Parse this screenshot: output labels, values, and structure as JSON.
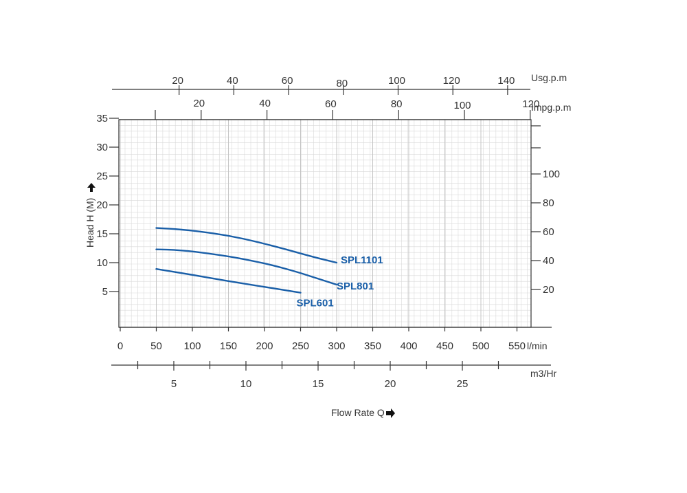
{
  "chart_data": {
    "type": "line",
    "colors": {
      "series": "#1a5fa8",
      "grid": "#d9d9d9",
      "axis": "#333333"
    },
    "grid": true,
    "x_axes": {
      "lpm": {
        "unit": "l/min",
        "range": [
          0,
          580
        ],
        "ticks": [
          0,
          50,
          100,
          150,
          200,
          250,
          300,
          350,
          400,
          450,
          500,
          550
        ]
      },
      "m3hr": {
        "unit": "m3/Hr",
        "ticks": [
          5,
          10,
          15,
          20,
          25
        ]
      },
      "usgpm": {
        "unit": "Usg.p.m",
        "ticks": [
          20,
          40,
          60,
          80,
          100,
          120,
          140
        ]
      },
      "impgpm": {
        "unit": "Impg.p.m",
        "ticks": [
          20,
          40,
          60,
          80,
          100,
          120
        ]
      }
    },
    "y_axes": {
      "head": {
        "label": "Head H (M)",
        "range": [
          0,
          35
        ],
        "ticks": [
          5,
          10,
          15,
          20,
          25,
          30,
          35
        ]
      },
      "right": {
        "range": [
          0,
          35
        ],
        "ticks": [
          20,
          40,
          60,
          80,
          100
        ]
      }
    },
    "x_title": "Flow Rate Q",
    "series": [
      {
        "name": "SPL1101",
        "x": [
          50,
          80,
          110,
          150,
          190,
          230,
          270,
          300
        ],
        "y": [
          16.0,
          15.8,
          15.4,
          14.7,
          13.6,
          12.3,
          10.9,
          10.0
        ]
      },
      {
        "name": "SPL801",
        "x": [
          50,
          80,
          110,
          150,
          180,
          210,
          245,
          275,
          300
        ],
        "y": [
          12.3,
          12.2,
          11.8,
          11.1,
          10.4,
          9.6,
          8.4,
          7.2,
          6.2
        ]
      },
      {
        "name": "SPL601",
        "x": [
          50,
          100,
          150,
          200,
          250
        ],
        "y": [
          8.9,
          7.9,
          6.8,
          5.8,
          4.8
        ]
      }
    ]
  }
}
